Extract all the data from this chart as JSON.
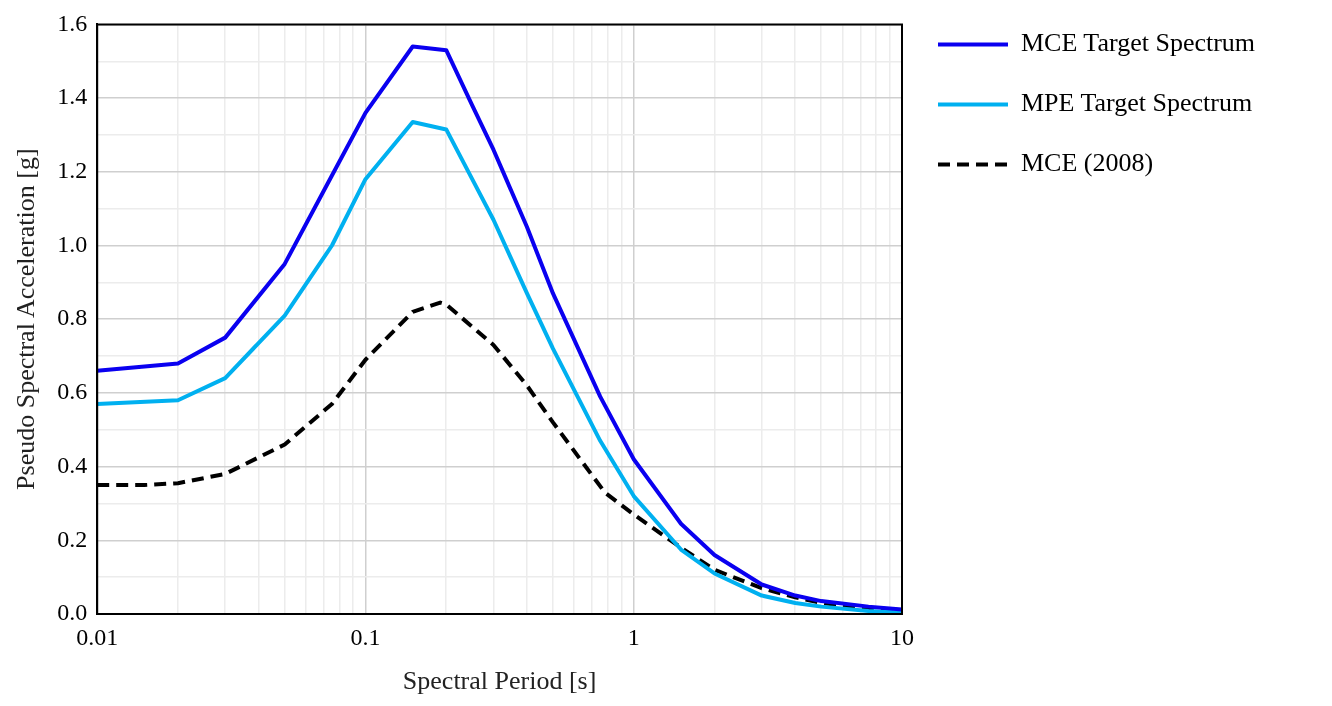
{
  "chart_data": {
    "type": "line",
    "xlabel": "Spectral Period [s]",
    "ylabel": "Pseudo Spectral Acceleration [g]",
    "log": "x",
    "grid": true,
    "legend": "top right",
    "marker": "none",
    "x": [
      0.01,
      0.02,
      0.03,
      0.05,
      0.075,
      0.1,
      0.15,
      0.2,
      0.25,
      0.3,
      0.4,
      0.5,
      0.75,
      1,
      1.5,
      2,
      3,
      4,
      5,
      7.5,
      10
    ],
    "series": [
      {
        "name": "MCE Target Spectrum",
        "color": "#0a00f0",
        "line_style": "solid",
        "values": [
          0.66,
          0.68,
          0.75,
          0.95,
          1.19,
          1.36,
          1.54,
          1.53,
          1.38,
          1.26,
          1.05,
          0.87,
          0.59,
          0.42,
          0.245,
          0.16,
          0.08,
          0.05,
          0.035,
          0.02,
          0.012
        ]
      },
      {
        "name": "MPE Target Spectrum",
        "color": "#00b0f0",
        "line_style": "solid",
        "values": [
          0.57,
          0.58,
          0.64,
          0.81,
          1.0,
          1.18,
          1.335,
          1.315,
          1.18,
          1.07,
          0.87,
          0.72,
          0.47,
          0.32,
          0.175,
          0.11,
          0.05,
          0.03,
          0.02,
          0.008,
          0.004
        ]
      },
      {
        "name": "MCE (2008)",
        "color": "#000000",
        "line_style": "dashed",
        "x": [
          0.01,
          0.015,
          0.02,
          0.03,
          0.05,
          0.075,
          0.1,
          0.15,
          0.19,
          0.2,
          0.3,
          0.4,
          0.5,
          0.78,
          1,
          1.5,
          2,
          3,
          4,
          5,
          7.5,
          10
        ],
        "values": [
          0.35,
          0.35,
          0.355,
          0.38,
          0.46,
          0.57,
          0.69,
          0.82,
          0.845,
          0.84,
          0.73,
          0.62,
          0.52,
          0.33,
          0.27,
          0.18,
          0.12,
          0.07,
          0.045,
          0.03,
          0.015,
          0.008
        ]
      }
    ],
    "xlim": [
      0.01,
      10
    ],
    "xticks": [
      0.01,
      {
        "value": 0.02,
        "label": null
      },
      {
        "value": 0.03,
        "label": null
      },
      {
        "value": 0.04,
        "label": null
      },
      {
        "value": 0.05,
        "label": null
      },
      {
        "value": 0.06,
        "label": null
      },
      {
        "value": 0.07,
        "label": null
      },
      {
        "value": 0.08,
        "label": null
      },
      {
        "value": 0.09,
        "label": null
      },
      0.1,
      {
        "value": 0.2,
        "label": null
      },
      {
        "value": 0.3,
        "label": null
      },
      {
        "value": 0.4,
        "label": null
      },
      {
        "value": 0.5,
        "label": null
      },
      {
        "value": 0.6,
        "label": null
      },
      {
        "value": 0.7,
        "label": null
      },
      {
        "value": 0.8,
        "label": null
      },
      {
        "value": 0.9,
        "label": null
      },
      1,
      {
        "value": 2,
        "label": null
      },
      {
        "value": 3,
        "label": null
      },
      {
        "value": 4,
        "label": null
      },
      {
        "value": 5,
        "label": null
      },
      {
        "value": 6,
        "label": null
      },
      {
        "value": 7,
        "label": null
      },
      {
        "value": 8,
        "label": null
      },
      {
        "value": 9,
        "label": null
      },
      10
    ],
    "ylim": [
      0,
      1.6
    ],
    "yticks": [
      {
        "value": 0,
        "label": "0.0"
      },
      {
        "value": 0.1,
        "label": null
      },
      {
        "value": 0.2,
        "label": "0.2"
      },
      {
        "value": 0.3,
        "label": null
      },
      {
        "value": 0.4,
        "label": "0.4"
      },
      {
        "value": 0.5,
        "label": null
      },
      {
        "value": 0.6,
        "label": "0.6"
      },
      {
        "value": 0.7,
        "label": null
      },
      {
        "value": 0.8,
        "label": "0.8"
      },
      {
        "value": 0.9,
        "label": null
      },
      {
        "value": 1.0,
        "label": "1.0"
      },
      {
        "value": 1.1,
        "label": null
      },
      {
        "value": 1.2,
        "label": "1.2"
      },
      {
        "value": 1.3,
        "label": null
      },
      {
        "value": 1.4,
        "label": "1.4"
      },
      {
        "value": 1.5,
        "label": null
      },
      {
        "value": 1.6,
        "label": "1.6"
      }
    ]
  }
}
